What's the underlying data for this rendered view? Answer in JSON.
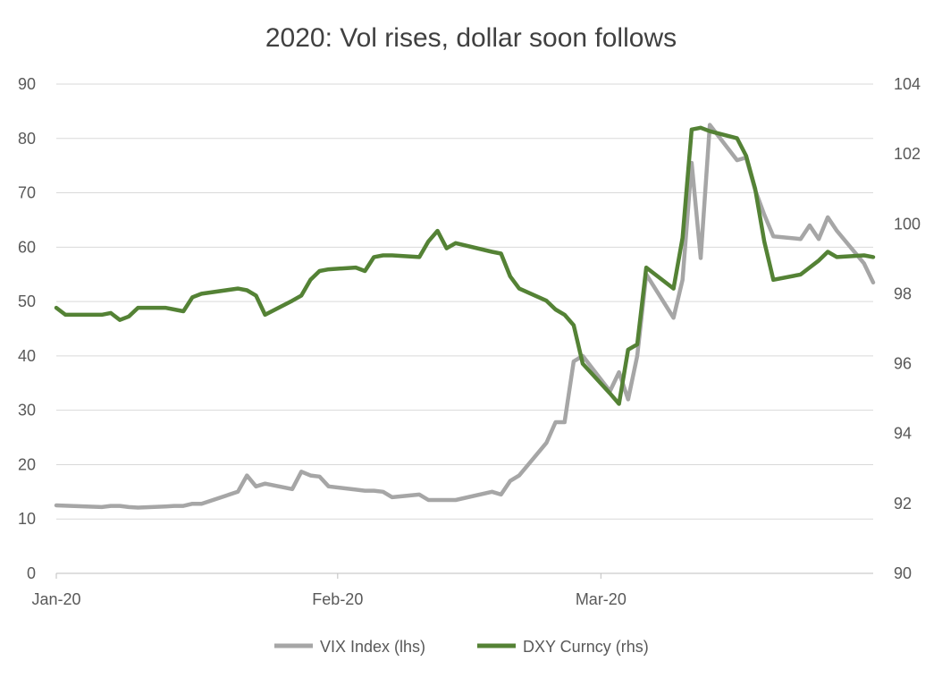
{
  "chart_data": {
    "type": "line",
    "title": "2020: Vol rises, dollar soon follows",
    "xlabel": "",
    "ylabel": "",
    "x_tick_labels": [
      "Jan-20",
      "Feb-20",
      "Mar-20"
    ],
    "y_left_ticks": [
      "0",
      "10",
      "20",
      "30",
      "40",
      "50",
      "60",
      "70",
      "80",
      "90"
    ],
    "y_right_ticks": [
      "90",
      "92",
      "94",
      "96",
      "98",
      "100",
      "102",
      "104"
    ],
    "ylim_left": [
      0,
      90
    ],
    "ylim_right": [
      90,
      104
    ],
    "grid": true,
    "legend_position": "bottom",
    "series": [
      {
        "name": "VIX Index (lhs)",
        "axis": "left",
        "color": "#a6a6a6",
        "x": [
          "2020-01-01",
          "2020-01-06",
          "2020-01-07",
          "2020-01-08",
          "2020-01-09",
          "2020-01-10",
          "2020-01-13",
          "2020-01-14",
          "2020-01-15",
          "2020-01-16",
          "2020-01-17",
          "2020-01-21",
          "2020-01-22",
          "2020-01-23",
          "2020-01-24",
          "2020-01-27",
          "2020-01-28",
          "2020-01-29",
          "2020-01-30",
          "2020-01-31",
          "2020-02-03",
          "2020-02-04",
          "2020-02-05",
          "2020-02-06",
          "2020-02-07",
          "2020-02-10",
          "2020-02-11",
          "2020-02-12",
          "2020-02-13",
          "2020-02-14",
          "2020-02-18",
          "2020-02-19",
          "2020-02-20",
          "2020-02-21",
          "2020-02-24",
          "2020-02-25",
          "2020-02-26",
          "2020-02-27",
          "2020-02-28",
          "2020-03-02",
          "2020-03-03",
          "2020-03-04",
          "2020-03-05",
          "2020-03-06",
          "2020-03-09",
          "2020-03-10",
          "2020-03-11",
          "2020-03-12",
          "2020-03-13",
          "2020-03-16",
          "2020-03-17",
          "2020-03-18",
          "2020-03-19",
          "2020-03-20",
          "2020-03-23",
          "2020-03-24",
          "2020-03-25",
          "2020-03-26",
          "2020-03-27",
          "2020-03-30",
          "2020-03-31"
        ],
        "values": [
          12.5,
          12.2,
          12.4,
          12.4,
          12.2,
          12.1,
          12.3,
          12.4,
          12.4,
          12.8,
          12.8,
          15.0,
          18.0,
          16.0,
          16.5,
          15.5,
          18.7,
          18.0,
          17.8,
          16.0,
          15.4,
          15.2,
          15.2,
          15.0,
          14.0,
          14.5,
          13.5,
          13.5,
          13.5,
          13.5,
          15.0,
          14.5,
          17.0,
          18.0,
          24.0,
          27.8,
          27.8,
          39.0,
          40.0,
          33.5,
          37.0,
          32.0,
          40.0,
          55.0,
          47.0,
          54.0,
          75.5,
          58.0,
          82.5,
          76.0,
          76.5,
          70.5,
          66.0,
          62.0,
          61.5,
          64.0,
          61.5,
          65.5,
          63.0,
          57.0,
          53.5
        ]
      },
      {
        "name": "DXY Curncy (rhs)",
        "axis": "right",
        "color": "#548235",
        "x": [
          "2020-01-01",
          "2020-01-02",
          "2020-01-03",
          "2020-01-06",
          "2020-01-07",
          "2020-01-08",
          "2020-01-09",
          "2020-01-10",
          "2020-01-13",
          "2020-01-14",
          "2020-01-15",
          "2020-01-16",
          "2020-01-17",
          "2020-01-21",
          "2020-01-22",
          "2020-01-23",
          "2020-01-24",
          "2020-01-27",
          "2020-01-28",
          "2020-01-29",
          "2020-01-30",
          "2020-01-31",
          "2020-02-03",
          "2020-02-04",
          "2020-02-05",
          "2020-02-06",
          "2020-02-07",
          "2020-02-10",
          "2020-02-11",
          "2020-02-12",
          "2020-02-13",
          "2020-02-14",
          "2020-02-18",
          "2020-02-19",
          "2020-02-20",
          "2020-02-21",
          "2020-02-24",
          "2020-02-25",
          "2020-02-26",
          "2020-02-27",
          "2020-02-28",
          "2020-03-02",
          "2020-03-03",
          "2020-03-04",
          "2020-03-05",
          "2020-03-06",
          "2020-03-09",
          "2020-03-10",
          "2020-03-11",
          "2020-03-12",
          "2020-03-13",
          "2020-03-16",
          "2020-03-17",
          "2020-03-18",
          "2020-03-19",
          "2020-03-20",
          "2020-03-23",
          "2020-03-24",
          "2020-03-25",
          "2020-03-26",
          "2020-03-27",
          "2020-03-30",
          "2020-03-31"
        ],
        "values": [
          97.6,
          97.4,
          97.4,
          97.4,
          97.45,
          97.25,
          97.35,
          97.6,
          97.6,
          97.55,
          97.5,
          97.9,
          98.0,
          98.15,
          98.1,
          97.95,
          97.4,
          97.8,
          97.95,
          98.4,
          98.65,
          98.7,
          98.75,
          98.65,
          99.05,
          99.1,
          99.1,
          99.05,
          99.5,
          99.8,
          99.3,
          99.45,
          99.2,
          99.15,
          98.5,
          98.15,
          97.8,
          97.55,
          97.4,
          97.1,
          96.0,
          95.15,
          94.85,
          96.4,
          96.55,
          98.75,
          98.15,
          99.6,
          102.7,
          102.75,
          102.65,
          102.45,
          101.95,
          101.0,
          99.5,
          98.4,
          98.55,
          98.75,
          98.95,
          99.2,
          99.05,
          99.1,
          99.05
        ]
      }
    ]
  }
}
